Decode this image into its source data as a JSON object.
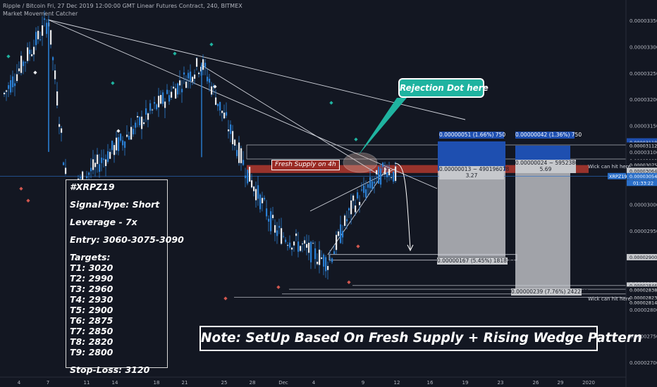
{
  "header": {
    "title": "Ripple / Bitcoin Fri, 27 Dec 2019 12:00:00 GMT Linear Futures Contract, 240, BITMEX",
    "indicator": "Market Movement Catcher"
  },
  "colors": {
    "background": "#131722",
    "candle": "#2a7fd4",
    "supply_zone": "#b2382e",
    "target_zone": "#d8dade",
    "stop_zone": "#1e4fb0",
    "accent": "#1fb3a0"
  },
  "signal_box": {
    "pair": "#XRPZ19",
    "signal_type": "Signal-Type: Short",
    "leverage": "Leverage - 7x",
    "entry": "Entry: 3060-3075-3090",
    "targets_heading": "Targets:",
    "targets": [
      "T1: 3020",
      "T2: 2990",
      "T3: 2960",
      "T4: 2930",
      "T5: 2900",
      "T6: 2875",
      "T7: 2850",
      "T8: 2820",
      "T9: 2800"
    ],
    "stop_loss": "Stop-Loss: 3120"
  },
  "annotations": {
    "note": "Note: SetUp Based On Fresh Supply + Rising Wedge Pattern",
    "rejection": "Rejection Dot here",
    "fresh_supply": "Fresh Supply on 4h",
    "wick_1": "Wick can hit here",
    "wick_2": "Wick can hit here"
  },
  "positions": {
    "left_stop": "0.00000051 (1.66%) 750",
    "right_stop": "0.00000042 (1.36%) 750",
    "left_entry_line1": "0.00000013 ~ 490196078",
    "left_entry_line2": "3.27",
    "right_entry_line1": "0.00000024 ~ 595238095",
    "right_entry_line2": "5.69",
    "left_target": "0.00000167 (5.45%) 1818.63",
    "right_target": "0.00000239 (7.76%) 2422.62"
  },
  "price_axis": {
    "ticks": [
      {
        "value": 3350,
        "label": "0.00003350"
      },
      {
        "value": 3300,
        "label": "0.00003300"
      },
      {
        "value": 3250,
        "label": "0.00003250"
      },
      {
        "value": 3200,
        "label": "0.00003200"
      },
      {
        "value": 3150,
        "label": "0.00003150"
      },
      {
        "value": 3100,
        "label": "0.00003100"
      },
      {
        "value": 3050,
        "label": "0.00003050"
      },
      {
        "value": 3000,
        "label": "0.00003000"
      },
      {
        "value": 2950,
        "label": "0.00002950"
      },
      {
        "value": 2900,
        "label": "0.00002900"
      },
      {
        "value": 2850,
        "label": "0.00002850"
      },
      {
        "value": 2800,
        "label": "0.00002800"
      },
      {
        "value": 2750,
        "label": "0.00002750"
      },
      {
        "value": 2700,
        "label": "0.00002700"
      }
    ],
    "markers": [
      {
        "value": 3120,
        "label": "0.00003120",
        "style": "blue"
      },
      {
        "value": 3118,
        "label": "0.00003118",
        "style": "blue"
      },
      {
        "value": 3112,
        "label": "0.00003112",
        "style": "plain"
      },
      {
        "value": 3083,
        "label": "0.00003083",
        "style": "plain"
      },
      {
        "value": 3079,
        "label": "0.00003079",
        "style": "plain"
      },
      {
        "value": 3078,
        "label": "0.00003078",
        "style": "plain"
      },
      {
        "value": 3075,
        "label": "0.00003075",
        "style": "plain"
      },
      {
        "value": 3067,
        "label": "0.00003067",
        "style": "plain"
      },
      {
        "value": 3064,
        "label": "0.00003064",
        "style": "light"
      },
      {
        "value": 3054,
        "label": "0.00003054",
        "style": "light"
      },
      {
        "value": 2900,
        "label": "0.00002900",
        "style": "light"
      },
      {
        "value": 2846,
        "label": "0.00002846",
        "style": "light"
      },
      {
        "value": 2839,
        "label": "0.00002839",
        "style": "light"
      },
      {
        "value": 2838,
        "label": "0.00002838",
        "style": "plain"
      },
      {
        "value": 2823,
        "label": "0.00002823",
        "style": "plain"
      },
      {
        "value": 2814,
        "label": "0.00002814",
        "style": "plain"
      }
    ],
    "current_symbol": "XRPZ19",
    "current_price": "0.00003054",
    "countdown": "01:33:22"
  },
  "chart_data": {
    "type": "candlestick",
    "symbol": "XRPZ19",
    "interval": "240",
    "y_unit": "satoshi (0.00000001 BTC)",
    "ylim": [
      2685,
      3378
    ],
    "x_ticks": [
      "4",
      "7",
      "11",
      "14",
      "18",
      "21",
      "25",
      "28",
      "Dec",
      "4",
      "9",
      "12",
      "16",
      "19",
      "23",
      "26",
      "29",
      "2020"
    ],
    "price_points": [
      {
        "value": 3210,
        "label": "start"
      },
      {
        "value": 3350,
        "label": "high"
      },
      {
        "value": 3020,
        "label": "swing low"
      },
      {
        "value": 3270,
        "label": "swing high"
      },
      {
        "value": 3060,
        "label": "supply"
      },
      {
        "value": 2950,
        "label": "breakdown"
      },
      {
        "value": 2890,
        "label": "low"
      },
      {
        "value": 3000,
        "label": "wedge start"
      },
      {
        "value": 3070,
        "label": "last high"
      },
      {
        "value": 3054,
        "label": "current"
      }
    ],
    "zones": {
      "fresh_supply": [
        3060,
        3075
      ],
      "left_short": {
        "entry": 3064,
        "stop": 3120,
        "target": 2900
      },
      "right_short": {
        "entry": 3067,
        "stop": 3112,
        "target": 2839
      }
    },
    "grid": false
  }
}
